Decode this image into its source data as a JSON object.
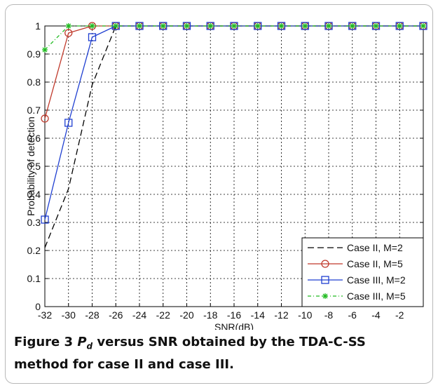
{
  "chart_data": {
    "type": "line",
    "title": "",
    "xlabel": "SNR(dB)",
    "ylabel": "Probability of detection",
    "xlim": [
      -32,
      0
    ],
    "ylim": [
      0,
      1
    ],
    "x_ticks": [
      "-32",
      "-30",
      "-28",
      "-26",
      "-24",
      "-22",
      "-20",
      "-18",
      "-16",
      "-14",
      "-12",
      "-10",
      "-8",
      "-6",
      "-4",
      "-2"
    ],
    "y_ticks": [
      "0",
      "0.1",
      "0.2",
      "0.3",
      "0.4",
      "0.5",
      "0.6",
      "0.7",
      "0.8",
      "0.9",
      "1"
    ],
    "grid": true,
    "legend_position": "bottom-right",
    "x": [
      -32,
      -30,
      -28,
      -26,
      -24,
      -22,
      -20,
      -18,
      -16,
      -14,
      -12,
      -10,
      -8,
      -6,
      -4,
      -2,
      0
    ],
    "series": [
      {
        "name": "Case II, M=2",
        "values": [
          0.21,
          0.42,
          0.79,
          1,
          1,
          1,
          1,
          1,
          1,
          1,
          1,
          1,
          1,
          1,
          1,
          1,
          1
        ],
        "color": "#000000",
        "line": "dashed",
        "marker": "none"
      },
      {
        "name": "Case II, M=5",
        "values": [
          0.67,
          0.975,
          1,
          1,
          1,
          1,
          1,
          1,
          1,
          1,
          1,
          1,
          1,
          1,
          1,
          1,
          1
        ],
        "color": "#c0392b",
        "line": "solid",
        "marker": "circle"
      },
      {
        "name": "Case III, M=2",
        "values": [
          0.31,
          0.655,
          0.96,
          1,
          1,
          1,
          1,
          1,
          1,
          1,
          1,
          1,
          1,
          1,
          1,
          1,
          1
        ],
        "color": "#1f3fd1",
        "line": "solid",
        "marker": "square"
      },
      {
        "name": "Case III, M=5",
        "values": [
          0.915,
          1,
          1,
          1,
          1,
          1,
          1,
          1,
          1,
          1,
          1,
          1,
          1,
          1,
          1,
          1,
          1
        ],
        "color": "#22bb22",
        "line": "dashdot",
        "marker": "star"
      }
    ]
  },
  "caption": {
    "label": "Figure 3",
    "symbol": "P",
    "symbol_sub": "d",
    "text": " versus SNR obtained by the TDA-C-SS method for case II and case III."
  }
}
